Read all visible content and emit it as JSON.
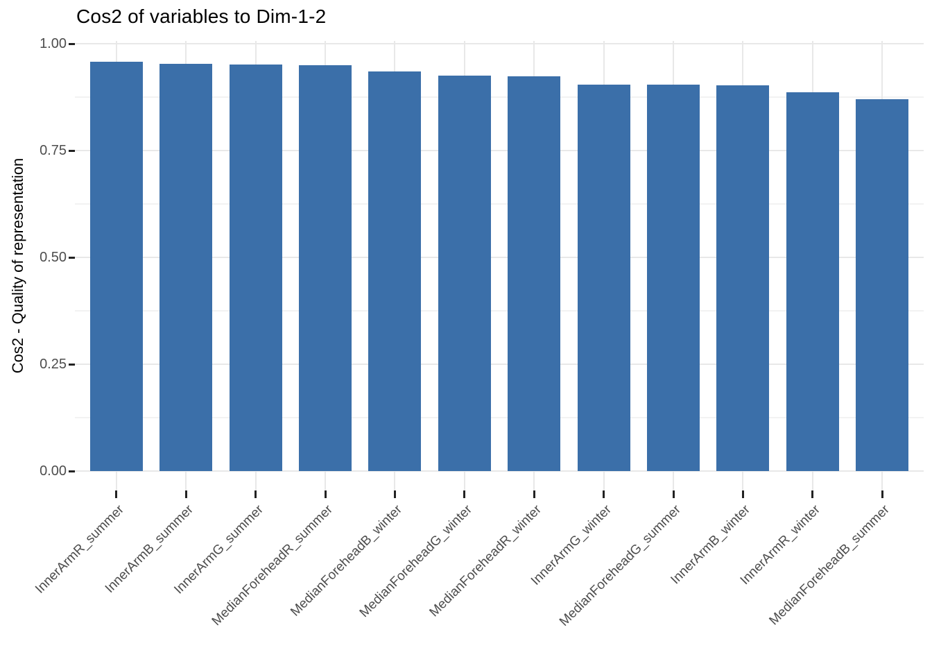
{
  "title": "Cos2 of variables to Dim-1-2",
  "chart_data": {
    "type": "bar",
    "title": "Cos2 of variables to Dim-1-2",
    "xlabel": "",
    "ylabel": "Cos2 - Quality of representation",
    "categories": [
      "InnerArmR_summer",
      "InnerArmB_summer",
      "InnerArmG_summer",
      "MedianForeheadR_summer",
      "MedianForeheadB_winter",
      "MedianForeheadG_winter",
      "MedianForeheadR_winter",
      "InnerArmG_winter",
      "MedianForeheadG_summer",
      "InnerArmB_winter",
      "InnerArmR_winter",
      "MedianForeheadB_summer"
    ],
    "values": [
      0.958,
      0.953,
      0.951,
      0.949,
      0.935,
      0.926,
      0.924,
      0.905,
      0.904,
      0.903,
      0.887,
      0.87
    ],
    "ylim": [
      0,
      1
    ],
    "ytick_values": [
      0.0,
      0.25,
      0.5,
      0.75,
      1.0
    ],
    "ytick_labels": [
      "0.00",
      "0.25",
      "0.50",
      "0.75",
      "1.00"
    ],
    "minor_ytick_values": [
      0.125,
      0.375,
      0.625,
      0.875
    ],
    "x_label_angle_deg": 45,
    "grid": "horizontal major+minor, vertical major at category centers",
    "legend": "none"
  },
  "colors": {
    "bar_fill": "#3b6fa9",
    "grid_major": "#e8e8e8",
    "grid_minor": "#f2f2f2",
    "axis_text": "#4d4d4d",
    "tick_mark": "#222222",
    "title_text": "#000000"
  }
}
